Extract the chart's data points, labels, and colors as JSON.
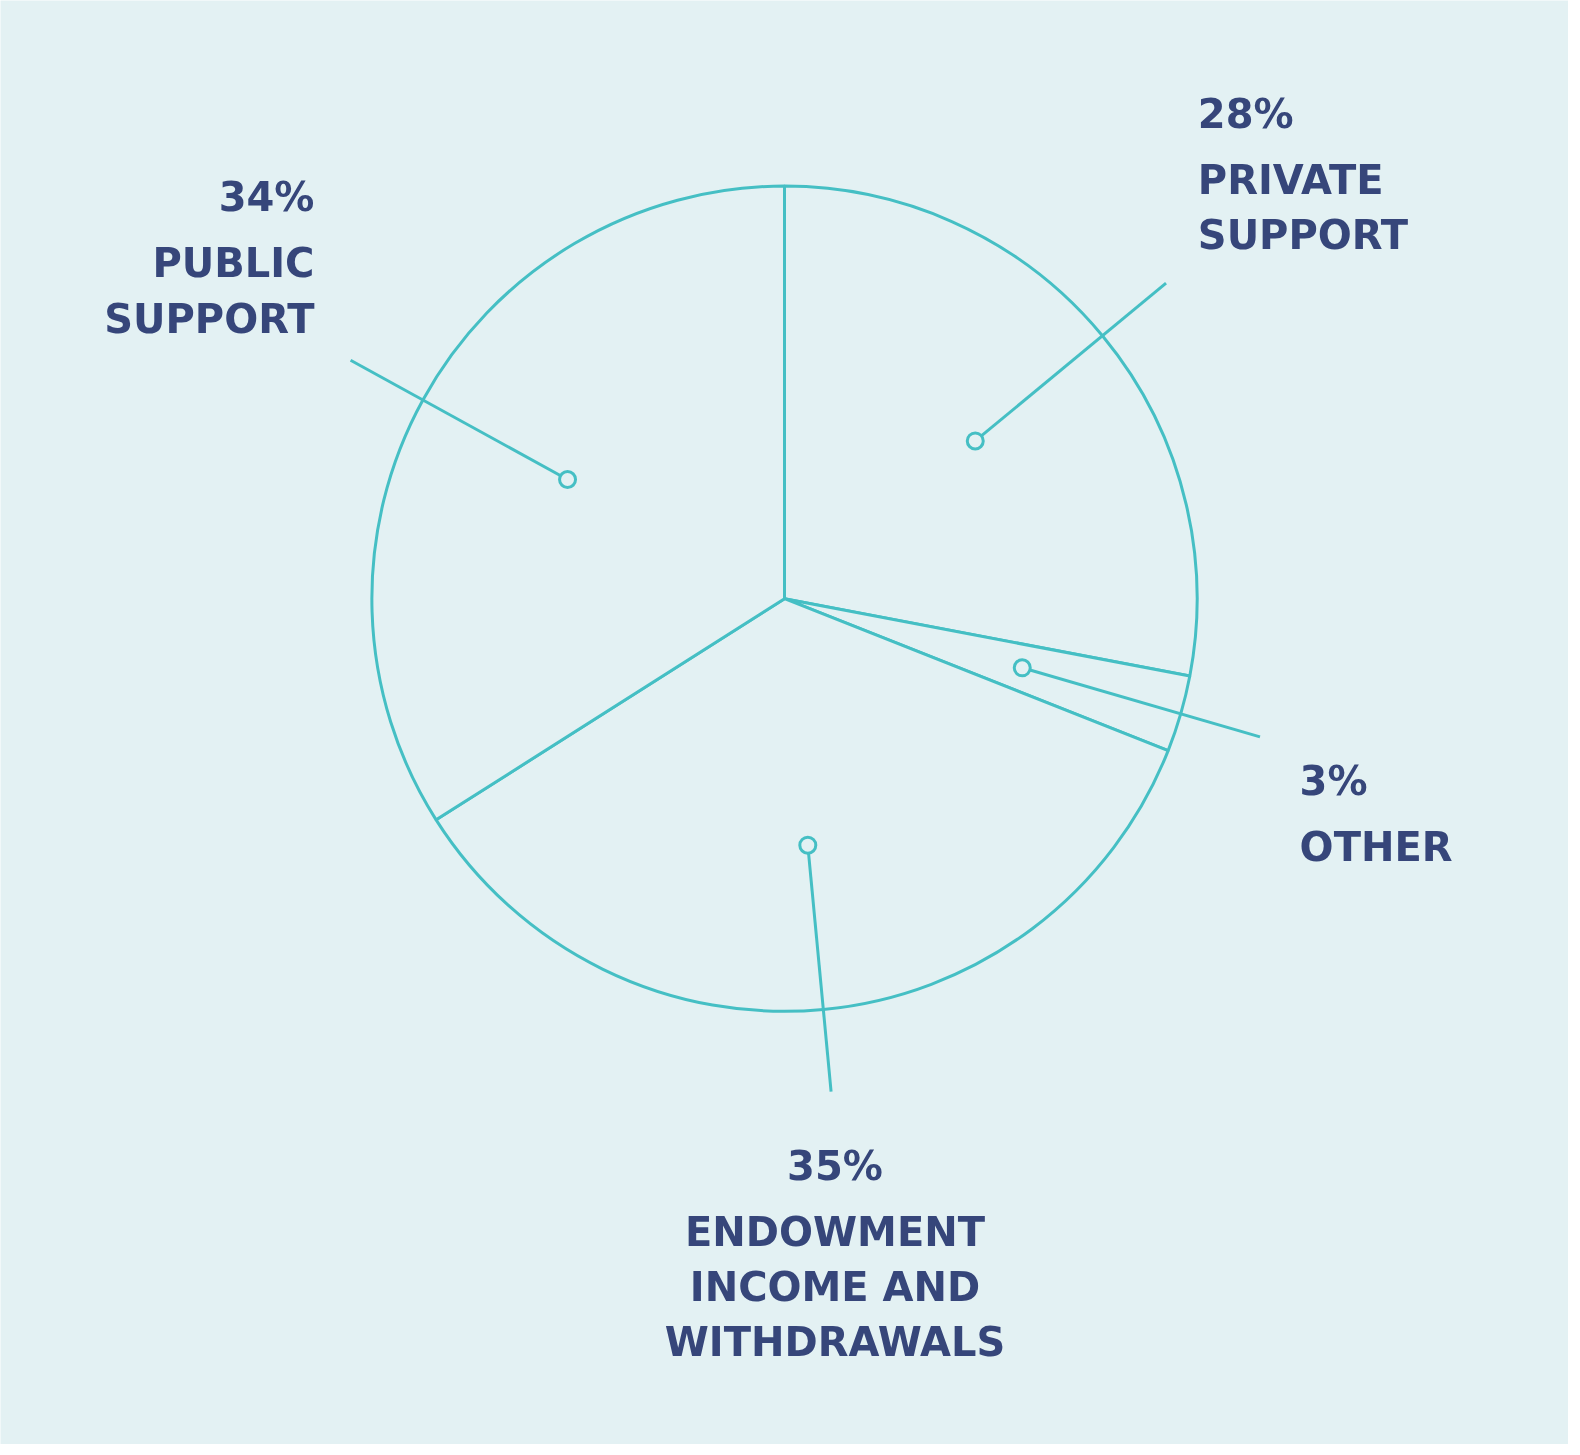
{
  "chart_data": {
    "type": "pie",
    "categories": [
      "PRIVATE SUPPORT",
      "OTHER",
      "ENDOWMENT INCOME AND WITHDRAWALS",
      "PUBLIC SUPPORT"
    ],
    "values": [
      28,
      3,
      35,
      34
    ],
    "value_labels": [
      "28%",
      "3%",
      "35%",
      "34%"
    ],
    "colors": [
      "#45bfc4",
      "#45bfc4",
      "#45bfc4",
      "#45bfc4"
    ]
  }
}
